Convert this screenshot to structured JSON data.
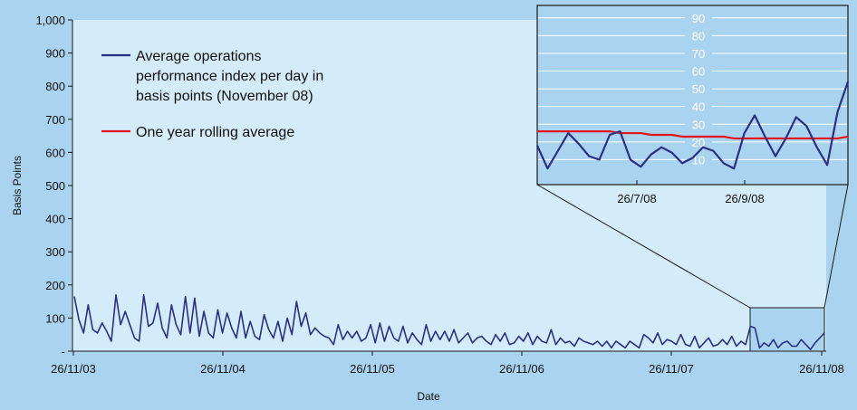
{
  "chart_data": {
    "type": "line",
    "xlabel": "Date",
    "ylabel": "Basis Points",
    "ylim": [
      0,
      1000
    ],
    "y_ticks": [
      "-",
      "100",
      "200",
      "300",
      "400",
      "500",
      "600",
      "700",
      "800",
      "900",
      "1,000"
    ],
    "x_ticks": [
      "26/11/03",
      "26/11/04",
      "26/11/05",
      "26/11/06",
      "26/11/07",
      "26/11/08"
    ],
    "legend": {
      "placement": "top-left",
      "entries": [
        {
          "name_lines": [
            "Average operations",
            "performance index per day in",
            "basis points (November 08)"
          ],
          "color": "#2b2f86"
        },
        {
          "name_lines": [
            "One year rolling average"
          ],
          "color": "#e3161c"
        }
      ]
    },
    "series": [
      {
        "name": "Average operations performance index per day in basis points (November 08)",
        "color": "#2b2f86",
        "values": [
          165,
          95,
          55,
          140,
          65,
          55,
          85,
          60,
          30,
          170,
          80,
          120,
          80,
          40,
          30,
          170,
          75,
          85,
          145,
          70,
          40,
          140,
          80,
          50,
          165,
          55,
          160,
          45,
          120,
          55,
          40,
          125,
          55,
          115,
          70,
          40,
          120,
          40,
          90,
          45,
          35,
          110,
          65,
          40,
          90,
          30,
          100,
          50,
          150,
          75,
          115,
          50,
          70,
          55,
          45,
          40,
          20,
          80,
          35,
          60,
          40,
          60,
          30,
          40,
          80,
          25,
          85,
          30,
          75,
          40,
          30,
          75,
          25,
          55,
          35,
          20,
          80,
          30,
          60,
          35,
          60,
          30,
          65,
          25,
          40,
          55,
          25,
          40,
          45,
          30,
          20,
          50,
          30,
          55,
          20,
          25,
          45,
          30,
          55,
          20,
          45,
          30,
          25,
          65,
          20,
          40,
          25,
          30,
          15,
          40,
          30,
          25,
          20,
          30,
          15,
          30,
          10,
          30,
          20,
          10,
          30,
          20,
          10,
          50,
          40,
          25,
          55,
          20,
          35,
          30,
          20,
          50,
          20,
          15,
          45,
          10,
          25,
          40,
          15,
          20,
          35,
          20,
          45,
          15,
          30,
          20,
          75,
          70,
          10,
          25,
          15,
          35,
          10,
          25,
          30,
          15,
          15,
          35,
          20,
          5,
          25,
          40,
          55
        ]
      },
      {
        "name": "One year rolling average",
        "color": "#e3161c"
      }
    ],
    "inset": {
      "y_ticks": [
        "10",
        "20",
        "30",
        "40",
        "50",
        "60",
        "70",
        "80",
        "90"
      ],
      "x_ticks": [
        "26/7/08",
        "26/9/08"
      ],
      "blue_values": [
        18,
        5,
        15,
        25,
        19,
        12,
        10,
        24,
        26,
        10,
        6,
        13,
        17,
        14,
        8,
        11,
        17,
        15,
        8,
        5,
        25,
        35,
        23,
        12,
        22,
        34,
        29,
        17,
        7,
        37,
        54
      ],
      "red_values": [
        26,
        26,
        26,
        26,
        26,
        26,
        26,
        26,
        25,
        25,
        25,
        24,
        24,
        24,
        23,
        23,
        23,
        23,
        23,
        22,
        22,
        22,
        22,
        22,
        22,
        22,
        22,
        22,
        22,
        22,
        23
      ]
    }
  }
}
